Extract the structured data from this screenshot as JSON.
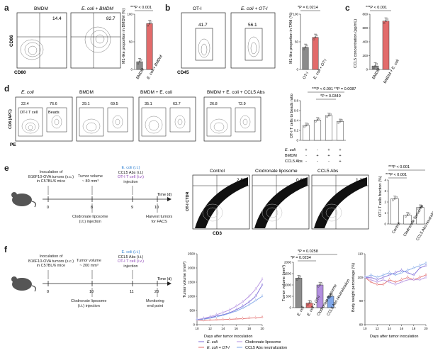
{
  "panels": {
    "a": {
      "label": "a",
      "flow_titles": [
        "BMDM",
        "E. coli + BMDM"
      ],
      "flow_values": [
        "14.4",
        "82.7"
      ],
      "xaxis": "CD80",
      "yaxis": "CD86",
      "bar_ylabel": "M1-like proportion in BMDM (%)",
      "pval": "***P < 0.001",
      "categories": [
        "BMDM",
        "E. coli + BMDM"
      ]
    },
    "b": {
      "label": "b",
      "flow_titles": [
        "OT-I",
        "E. coli + OT-I"
      ],
      "flow_values": [
        "41.7",
        "56.1"
      ],
      "xaxis": "CD45",
      "bar_ylabel": "M1-like proportion in TAM (%)",
      "pval": "*P = 0.0214",
      "categories": [
        "OT-I",
        "E. coli + OT-I"
      ]
    },
    "c": {
      "label": "c",
      "bar_ylabel": "CCL5 concentration (pg/mL)",
      "pval": "***P < 0.001",
      "categories": [
        "BMDM",
        "BMDM + E. coli"
      ]
    },
    "d": {
      "label": "d",
      "flow_titles": [
        "E. coli",
        "BMDM",
        "BMDM + E. coli",
        "BMDM + E. coli + CCL5 Abs"
      ],
      "flow_pairs": [
        [
          "22.4",
          "76.6"
        ],
        [
          "29.1",
          "69.5"
        ],
        [
          "35.1",
          "63.7"
        ],
        [
          "26.8",
          "72.9"
        ]
      ],
      "gate1": "OT-I T cell",
      "gate2": "Beads",
      "xaxis": "PE",
      "yaxis": "CD8 (APC)",
      "bar_ylabel": "OT-I T cells to beads ratio",
      "pval_top": "***P < 0.001  **P = 0.0087",
      "pval_mid": "*P = 0.0349",
      "rows": [
        "E. coli",
        "BMDM",
        "CCL5 Abs"
      ],
      "signs": [
        [
          "+",
          "-",
          "+",
          "+"
        ],
        [
          "-",
          "+",
          "+",
          "+"
        ],
        [
          "-",
          "-",
          "-",
          "+"
        ]
      ]
    },
    "e": {
      "label": "e",
      "timeline": {
        "t1": "Inoculation of\nB16F10-OVA tumors (s.c.)\nin C57BL/6 mice",
        "t2": "Tumor volume\n~ 80 mm³",
        "t3a": "E. coli (i.t.)",
        "t3b": "CCL5 Abs (i.t.)",
        "t3c": "OT-I T cell (i.v.)",
        "t3d": "injection",
        "timeaxis": "Time (d)",
        "days": [
          "0",
          "8",
          "9",
          "10"
        ],
        "below1": "Clodronate liposome\n(i.t.) injection",
        "below2": "Harvest tumors\nfor FACS"
      },
      "flow_titles": [
        "Control",
        "Clodronate liposome",
        "CCL5 Abs"
      ],
      "flow_values": [
        "2.58",
        "0.60",
        "1.38"
      ],
      "xaxis": "CD3",
      "yaxis": "OT-I CTDR",
      "bar_ylabel": "OT-I T cells fraction (%)",
      "pval1": "***P < 0.001",
      "pval2": "***P < 0.001",
      "categories": [
        "Control",
        "Clodronate liposome",
        "CCL5 Abs neutralization"
      ]
    },
    "f": {
      "label": "f",
      "timeline": {
        "t1": "Inoculation of\nB16F10-OVA tumors (s.c.)\nin C57BL/6 mice",
        "t2": "Tumor volume\n~ 200 mm³",
        "t3a": "E. coli (i.t.)",
        "t3b": "CCL5 Abs (i.t.)",
        "t3c": "OT-I T cell (i.v.)",
        "t3d": "injection",
        "timeaxis": "Time (d)",
        "days": [
          "0",
          "10",
          "11",
          "20"
        ],
        "below1": "Clodronate liposome\n(i.t.) injection",
        "below2": "Monitoring\nend point"
      },
      "line_ylabel": "Tumor volume (mm³)",
      "line_xlabel": "Days after tumor inoculation",
      "legend": [
        "E. coli",
        "Clodronate liposome",
        "E. coli + OT-I",
        "CCL5 Abs neutralization"
      ],
      "bar_ylabel": "Tumor volume (mm³)",
      "pval1": "*P = 0.0258",
      "pval2": "*P = 0.0234",
      "bar_categories": [
        "E. coli",
        "E. coli + OT-I",
        "Clodronate liposome",
        "CCL5 Abs neutralization"
      ],
      "bw_ylabel": "Body weight percentage (%)",
      "bw_xlabel": "Days after tumor inoculation"
    }
  },
  "chart_data": [
    {
      "id": "a-bar",
      "type": "bar",
      "categories": [
        "BMDM",
        "E. coli + BMDM"
      ],
      "values": [
        14,
        83
      ],
      "ylim": [
        0,
        100
      ],
      "yticks": [
        0,
        50,
        100
      ],
      "colors": [
        "#8c8c8c",
        "#e26b6b"
      ]
    },
    {
      "id": "b-bar",
      "type": "bar",
      "categories": [
        "OT-I",
        "E. coli + OT-I"
      ],
      "values": [
        40,
        58
      ],
      "ylim": [
        0,
        100
      ],
      "yticks": [
        0,
        50,
        100
      ],
      "colors": [
        "#8c8c8c",
        "#e26b6b"
      ]
    },
    {
      "id": "c-bar",
      "type": "bar",
      "categories": [
        "BMDM",
        "BMDM + E. coli"
      ],
      "values": [
        50,
        700
      ],
      "ylim": [
        0,
        800
      ],
      "yticks": [
        0,
        200,
        400,
        600,
        800
      ],
      "colors": [
        "#8c8c8c",
        "#e26b6b"
      ]
    },
    {
      "id": "d-bar",
      "type": "bar",
      "values": [
        0.3,
        0.41,
        0.5,
        0.38
      ],
      "ylim": [
        0,
        0.8
      ],
      "yticks": [
        0,
        0.2,
        0.4,
        0.6,
        0.8
      ],
      "colors": [
        "#ffffff",
        "#ffffff",
        "#ffffff",
        "#ffffff"
      ]
    },
    {
      "id": "e-bar",
      "type": "bar",
      "categories": [
        "Control",
        "Clodronate liposome",
        "CCL5 Abs neutralization"
      ],
      "values": [
        2.3,
        0.8,
        1.5
      ],
      "ylim": [
        0,
        4
      ],
      "yticks": [
        0,
        1,
        2,
        3,
        4
      ],
      "colors": [
        "#ffffff",
        "#ffffff",
        "#ffffff"
      ]
    },
    {
      "id": "f-line",
      "type": "line",
      "x": [
        10,
        11,
        12,
        13,
        14,
        15,
        16,
        17,
        18,
        19,
        20
      ],
      "xlim": [
        10,
        20
      ],
      "ylim": [
        0,
        2500
      ],
      "yticks": [
        0,
        500,
        1000,
        1500,
        2000,
        2500
      ],
      "series": [
        {
          "name": "E. coli",
          "color": "#7c6ad8",
          "values": [
            180,
            200,
            250,
            300,
            350,
            420,
            520,
            650,
            800,
            1000,
            1400
          ]
        },
        {
          "name": "E. coli + OT-I",
          "color": "#e26b6b",
          "values": [
            160,
            150,
            160,
            170,
            180,
            190,
            200,
            210,
            230,
            240,
            260
          ]
        },
        {
          "name": "Clodronate liposome",
          "color": "#b38fe0",
          "values": [
            180,
            220,
            280,
            350,
            430,
            520,
            650,
            800,
            1000,
            1250,
            1600
          ]
        },
        {
          "name": "CCL5 Abs neutralization",
          "color": "#7fa6e8",
          "values": [
            170,
            190,
            230,
            280,
            330,
            400,
            480,
            580,
            700,
            850,
            1000
          ]
        }
      ]
    },
    {
      "id": "f-bar",
      "type": "bar",
      "categories": [
        "E. coli",
        "E. coli + OT-I",
        "Clodronate liposome",
        "CCL5 Abs neutralization"
      ],
      "values": [
        1300,
        200,
        1000,
        500
      ],
      "ylim": [
        0,
        2000
      ],
      "yticks": [
        0,
        500,
        1000,
        1500,
        2000
      ],
      "colors": [
        "#8c8c8c",
        "#e26b6b",
        "#b38fe0",
        "#7fa6e8"
      ]
    },
    {
      "id": "f-bw",
      "type": "line",
      "x": [
        10,
        11,
        12,
        13,
        14,
        15,
        16,
        17,
        18,
        19,
        20
      ],
      "xlim": [
        10,
        20
      ],
      "ylim": [
        80,
        110
      ],
      "yticks": [
        80,
        90,
        100,
        110
      ],
      "series": [
        {
          "name": "E. coli",
          "color": "#7c6ad8",
          "values": [
            100,
            100,
            99,
            100,
            101,
            102,
            103,
            102,
            101,
            104,
            105
          ]
        },
        {
          "name": "E. coli + OT-I",
          "color": "#e26b6b",
          "values": [
            100,
            98,
            97,
            97,
            99,
            98,
            99,
            100,
            99,
            100,
            101
          ]
        },
        {
          "name": "Clodronate liposome",
          "color": "#b38fe0",
          "values": [
            100,
            99,
            98,
            99,
            98,
            97,
            98,
            99,
            99,
            99,
            100
          ]
        },
        {
          "name": "CCL5 Abs neutralization",
          "color": "#7fa6e8",
          "values": [
            100,
            101,
            100,
            101,
            102,
            101,
            102,
            103,
            104,
            105,
            106
          ]
        }
      ]
    }
  ]
}
